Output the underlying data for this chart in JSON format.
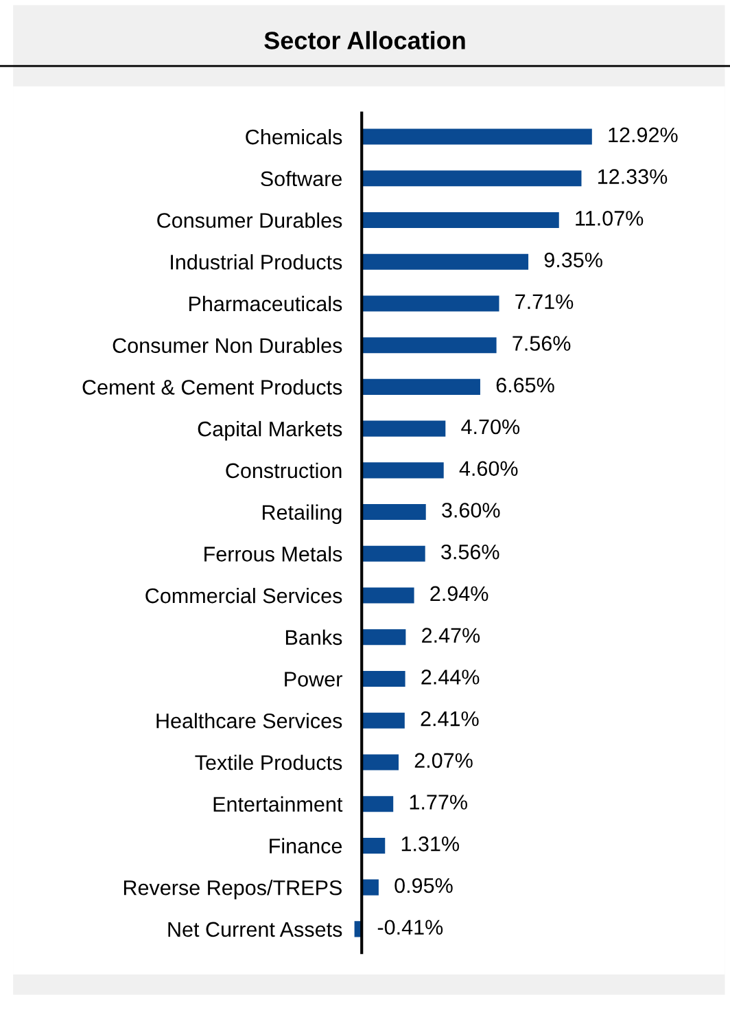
{
  "chart_data": {
    "type": "bar",
    "orientation": "horizontal",
    "title": "Sector Allocation",
    "categories": [
      "Chemicals",
      "Software",
      "Consumer Durables",
      "Industrial Products",
      "Pharmaceuticals",
      "Consumer Non Durables",
      "Cement & Cement Products",
      "Capital Markets",
      "Construction",
      "Retailing",
      "Ferrous Metals",
      "Commercial Services",
      "Banks",
      "Power",
      "Healthcare Services",
      "Textile Products",
      "Entertainment",
      "Finance",
      "Reverse Repos/TREPS",
      "Net Current Assets"
    ],
    "values": [
      12.92,
      12.33,
      11.07,
      9.35,
      7.71,
      7.56,
      6.65,
      4.7,
      4.6,
      3.6,
      3.56,
      2.94,
      2.47,
      2.44,
      2.41,
      2.07,
      1.77,
      1.31,
      0.95,
      -0.41
    ],
    "value_labels": [
      "12.92%",
      "12.33%",
      "11.07%",
      "9.35%",
      "7.71%",
      "7.56%",
      "6.65%",
      "4.70%",
      "4.60%",
      "3.60%",
      "3.56%",
      "2.94%",
      "2.47%",
      "2.44%",
      "2.41%",
      "2.07%",
      "1.77%",
      "1.31%",
      "0.95%",
      "-0.41%"
    ],
    "color": "#0a4a92",
    "grid": false,
    "legend": false,
    "tick_labels": "y"
  }
}
